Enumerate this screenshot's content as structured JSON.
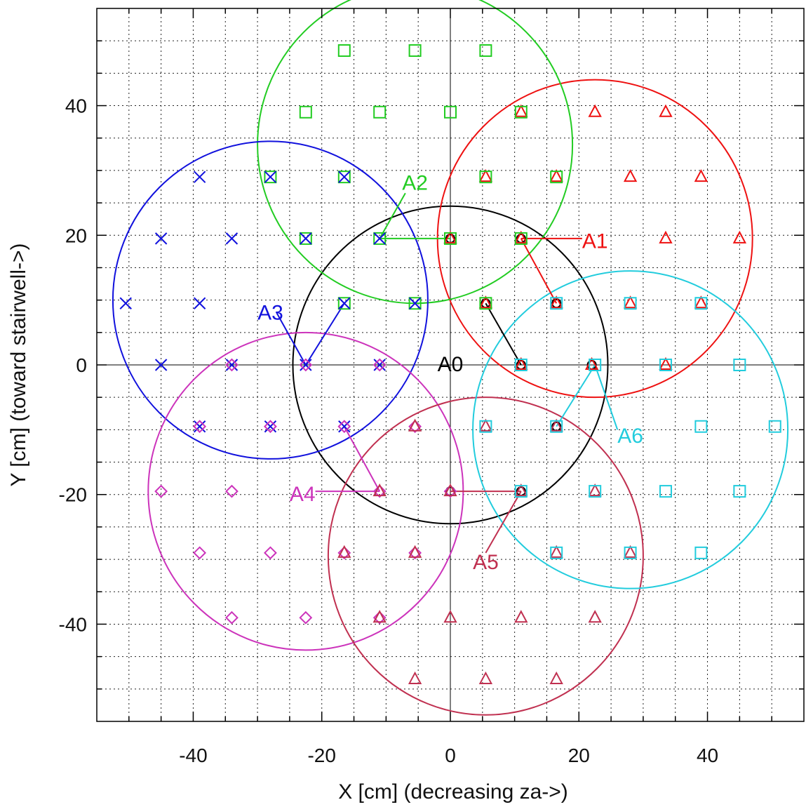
{
  "chart_data": {
    "type": "scatter",
    "xlabel": "X [cm] (decreasing za->)",
    "ylabel": "Y [cm] (toward stairwell->)",
    "xlim": [
      -55,
      55
    ],
    "ylim": [
      -55,
      55
    ],
    "grid": true,
    "grid_style": "dotted",
    "xticks": [
      -40,
      -20,
      0,
      20,
      40
    ],
    "yticks": [
      -40,
      -20,
      0,
      20,
      40
    ],
    "xtick_labels": [
      "-40",
      "-20",
      "0",
      "20",
      "40"
    ],
    "ytick_labels": [
      "-40",
      "-20",
      "0",
      "20",
      "40"
    ],
    "series": [
      {
        "name": "A0",
        "color": "#000000",
        "marker": "circle",
        "circle": {
          "cx": 0,
          "cy": 0,
          "r": 24.5
        },
        "label": {
          "x": -2,
          "y": -1
        },
        "leader": [
          [
            11,
            0
          ],
          [
            5.5,
            9.5
          ]
        ],
        "points": [
          [
            0,
            19.5
          ],
          [
            5.5,
            9.5
          ],
          [
            11,
            19.5
          ],
          [
            11,
            0
          ],
          [
            16.5,
            9.5
          ],
          [
            22,
            0
          ],
          [
            16.5,
            -9.5
          ],
          [
            11,
            -19.5
          ],
          [
            0,
            -19.5
          ]
        ]
      },
      {
        "name": "A1",
        "color": "#ee1111",
        "marker": "triangle",
        "circle": {
          "cx": 22.5,
          "cy": 19.5,
          "r": 24.5
        },
        "label": {
          "x": 20.5,
          "y": 18
        },
        "leader": [
          [
            11,
            19.5
          ],
          [
            20.5,
            19.5
          ]
        ],
        "leader2": [
          [
            11,
            19.5
          ],
          [
            16.5,
            9.5
          ]
        ],
        "points": [
          [
            11,
            39
          ],
          [
            22.5,
            39
          ],
          [
            33.5,
            39
          ],
          [
            5.5,
            29
          ],
          [
            16.5,
            29
          ],
          [
            28,
            29
          ],
          [
            39,
            29
          ],
          [
            0,
            19.5
          ],
          [
            11,
            19.5
          ],
          [
            33.5,
            19.5
          ],
          [
            45,
            19.5
          ],
          [
            5.5,
            9.5
          ],
          [
            16.5,
            9.5
          ],
          [
            28,
            9.5
          ],
          [
            39,
            9.5
          ],
          [
            11,
            0
          ],
          [
            22,
            0
          ],
          [
            33.5,
            0
          ]
        ]
      },
      {
        "name": "A2",
        "color": "#22cc22",
        "marker": "square",
        "circle": {
          "cx": -5.5,
          "cy": 34,
          "r": 24.5
        },
        "label": {
          "x": -7.5,
          "y": 27
        },
        "leader": [
          [
            -11,
            19.5
          ],
          [
            -7,
            26.5
          ]
        ],
        "leader2": [
          [
            -11,
            19.5
          ],
          [
            0,
            19.5
          ]
        ],
        "points": [
          [
            -16.5,
            48.5
          ],
          [
            -5.5,
            48.5
          ],
          [
            5.5,
            48.5
          ],
          [
            -22.5,
            39
          ],
          [
            -11,
            39
          ],
          [
            0,
            39
          ],
          [
            11,
            39
          ],
          [
            -28,
            29
          ],
          [
            -16.5,
            29
          ],
          [
            5.5,
            29
          ],
          [
            16.5,
            29
          ],
          [
            -22.5,
            19.5
          ],
          [
            -11,
            19.5
          ],
          [
            0,
            19.5
          ],
          [
            11,
            19.5
          ],
          [
            -16.5,
            9.5
          ],
          [
            -5.5,
            9.5
          ],
          [
            5.5,
            9.5
          ]
        ]
      },
      {
        "name": "A3",
        "color": "#1111dd",
        "marker": "x",
        "circle": {
          "cx": -28,
          "cy": 10,
          "r": 24.5
        },
        "label": {
          "x": -30,
          "y": 7
        },
        "leader": [
          [
            -22.5,
            0
          ],
          [
            -27,
            8
          ]
        ],
        "leader2": [
          [
            -22.5,
            0
          ],
          [
            -16.5,
            9.5
          ]
        ],
        "points": [
          [
            -39,
            29
          ],
          [
            -28,
            29
          ],
          [
            -16.5,
            29
          ],
          [
            -45,
            19.5
          ],
          [
            -34,
            19.5
          ],
          [
            -22.5,
            19.5
          ],
          [
            -11,
            19.5
          ],
          [
            -50.5,
            9.5
          ],
          [
            -39,
            9.5
          ],
          [
            -16.5,
            9.5
          ],
          [
            -5.5,
            9.5
          ],
          [
            -45,
            0
          ],
          [
            -34,
            0
          ],
          [
            -22.5,
            0
          ],
          [
            -11,
            0
          ],
          [
            -39,
            -9.5
          ],
          [
            -28,
            -9.5
          ],
          [
            -16.5,
            -9.5
          ]
        ]
      },
      {
        "name": "A4",
        "color": "#cc33bb",
        "marker": "diamond",
        "circle": {
          "cx": -22.5,
          "cy": -19.5,
          "r": 24.5
        },
        "label": {
          "x": -25,
          "y": -21
        },
        "leader": [
          [
            -11,
            -19.5
          ],
          [
            -21,
            -19.5
          ]
        ],
        "leader2": [
          [
            -11,
            -19.5
          ],
          [
            -16.5,
            -9.5
          ]
        ],
        "points": [
          [
            -34,
            0
          ],
          [
            -22.5,
            0
          ],
          [
            -11,
            0
          ],
          [
            -39,
            -9.5
          ],
          [
            -28,
            -9.5
          ],
          [
            -16.5,
            -9.5
          ],
          [
            -5.5,
            -9.5
          ],
          [
            -45,
            -19.5
          ],
          [
            -34,
            -19.5
          ],
          [
            -11,
            -19.5
          ],
          [
            0,
            -19.5
          ],
          [
            -39,
            -29
          ],
          [
            -28,
            -29
          ],
          [
            -16.5,
            -29
          ],
          [
            -5.5,
            -29
          ],
          [
            -34,
            -39
          ],
          [
            -22.5,
            -39
          ],
          [
            -11,
            -39
          ]
        ]
      },
      {
        "name": "A5",
        "color": "#c03050",
        "marker": "triangle",
        "circle": {
          "cx": 5.5,
          "cy": -29.5,
          "r": 24.5
        },
        "label": {
          "x": 3.5,
          "y": -31.5
        },
        "leader": [
          [
            11,
            -19.5
          ],
          [
            0,
            -19.5
          ]
        ],
        "leader2": [
          [
            11,
            -19.5
          ],
          [
            5.5,
            -29
          ]
        ],
        "points": [
          [
            -5.5,
            -9.5
          ],
          [
            5.5,
            -9.5
          ],
          [
            16.5,
            -9.5
          ],
          [
            -11,
            -19.5
          ],
          [
            0,
            -19.5
          ],
          [
            11,
            -19.5
          ],
          [
            22.5,
            -19.5
          ],
          [
            -16.5,
            -29
          ],
          [
            -5.5,
            -29
          ],
          [
            16.5,
            -29
          ],
          [
            28,
            -29
          ],
          [
            -11,
            -39
          ],
          [
            0,
            -39
          ],
          [
            11,
            -39
          ],
          [
            22.5,
            -39
          ],
          [
            -5.5,
            -48.5
          ],
          [
            5.5,
            -48.5
          ],
          [
            16.5,
            -48.5
          ]
        ]
      },
      {
        "name": "A6",
        "color": "#22ccdd",
        "marker": "square",
        "circle": {
          "cx": 28,
          "cy": -10,
          "r": 24.5
        },
        "label": {
          "x": 26,
          "y": -12
        },
        "leader": [
          [
            22.5,
            0
          ],
          [
            26,
            -10
          ]
        ],
        "leader2": [
          [
            22.5,
            0
          ],
          [
            16.5,
            -9.5
          ]
        ],
        "points": [
          [
            16.5,
            9.5
          ],
          [
            28,
            9.5
          ],
          [
            39,
            9.5
          ],
          [
            11,
            0
          ],
          [
            22.5,
            0
          ],
          [
            33.5,
            0
          ],
          [
            45,
            0
          ],
          [
            5.5,
            -9.5
          ],
          [
            16.5,
            -9.5
          ],
          [
            39,
            -9.5
          ],
          [
            50.5,
            -9.5
          ],
          [
            11,
            -19.5
          ],
          [
            22.5,
            -19.5
          ],
          [
            33.5,
            -19.5
          ],
          [
            45,
            -19.5
          ],
          [
            16.5,
            -29
          ],
          [
            28,
            -29
          ],
          [
            39,
            -29
          ]
        ]
      }
    ]
  }
}
